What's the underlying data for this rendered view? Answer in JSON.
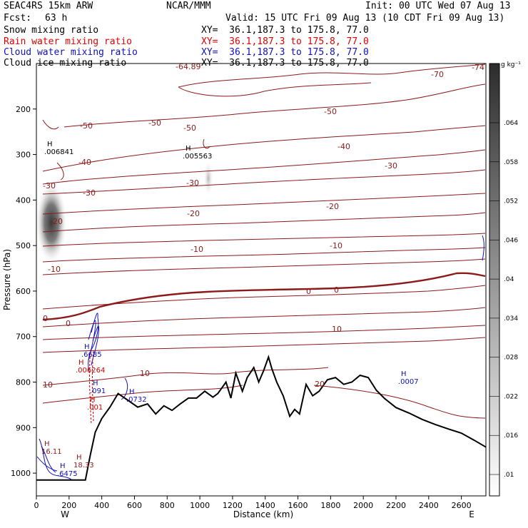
{
  "header": {
    "model": "SEAC4RS 15km ARW",
    "org": "NCAR/MMM",
    "init": "Init: 00 UTC Wed 07 Aug 13",
    "fcst_label": "Fcst:",
    "fcst_value": "63 h",
    "valid": "Valid: 15 UTC Fri 09 Aug 13 (10 CDT Fri 09 Aug 13)"
  },
  "fields": [
    {
      "name": "Snow mixing ratio",
      "xy": "XY=  36.1,187.3 to 175.8, 77.0",
      "color": "#000000"
    },
    {
      "name": "Rain water mixing ratio",
      "xy": "XY=  36.1,187.3 to 175.8, 77.0",
      "color": "#e00000"
    },
    {
      "name": "Cloud water mixing ratio",
      "xy": "XY=  36.1,187.3 to 175.8, 77.0",
      "color": "#1010c0"
    },
    {
      "name": "Cloud ice mixing ratio",
      "xy": "XY=  36.1,187.3 to 175.8, 77.0",
      "color": "#000000"
    }
  ],
  "chart_data": {
    "type": "contour",
    "xlabel": "Distance (km)",
    "ylabel": "Pressure (hPa)",
    "xlim": [
      0,
      2750
    ],
    "ylim": [
      100,
      1050
    ],
    "x_ticks": [
      0,
      200,
      400,
      600,
      800,
      1000,
      1200,
      1400,
      1600,
      1800,
      2000,
      2200,
      2400,
      2600
    ],
    "y_ticks": [
      200,
      300,
      400,
      500,
      600,
      700,
      800,
      900,
      1000
    ],
    "x_end_labels": {
      "left": "W",
      "right": "E"
    },
    "colorbar": {
      "unit": "g kg⁻¹",
      "ticks": [
        ".064",
        ".058",
        ".052",
        ".046",
        ".04",
        ".034",
        ".028",
        ".022",
        ".016",
        ".01"
      ]
    },
    "temperature_contour_labels": [
      "-74",
      "-70",
      "-64.89",
      "-50",
      "-40",
      "-30",
      "-20",
      "-10",
      "0",
      "10",
      "20"
    ],
    "maxima": [
      {
        "label": "H",
        "value": ".006841"
      },
      {
        "label": "H",
        "value": ".005563"
      },
      {
        "label": "H",
        "value": ".6685"
      },
      {
        "label": "H",
        "value": ".006264"
      },
      {
        "label": "H",
        "value": ".091"
      },
      {
        "label": "H",
        "value": ".001"
      },
      {
        "label": "H",
        "value": ".0732"
      },
      {
        "label": "H",
        "value": ".0007"
      },
      {
        "label": "H",
        "value": "16.11"
      },
      {
        "label": "H",
        "value": "18.33"
      },
      {
        "label": "H",
        "value": ".6475"
      }
    ],
    "terrain": {
      "x": [
        0,
        100,
        200,
        300,
        330,
        360,
        400,
        450,
        500,
        560,
        620,
        680,
        730,
        780,
        830,
        880,
        930,
        980,
        1030,
        1080,
        1110,
        1140,
        1160,
        1190,
        1220,
        1260,
        1290,
        1330,
        1360,
        1390,
        1420,
        1440,
        1470,
        1510,
        1550,
        1580,
        1610,
        1650,
        1690,
        1730,
        1780,
        1830,
        1880,
        1930,
        1980,
        2030,
        2080,
        2130,
        2200,
        2280,
        2360,
        2440,
        2520,
        2600,
        2680,
        2760
      ],
      "p": [
        1015,
        1015,
        1015,
        1015,
        960,
        910,
        880,
        855,
        825,
        840,
        855,
        848,
        870,
        852,
        862,
        848,
        835,
        835,
        820,
        833,
        825,
        810,
        800,
        835,
        780,
        820,
        790,
        768,
        800,
        775,
        745,
        770,
        800,
        830,
        875,
        860,
        870,
        805,
        830,
        820,
        795,
        790,
        805,
        800,
        785,
        790,
        818,
        836,
        856,
        868,
        882,
        893,
        903,
        912,
        928,
        945
      ]
    }
  }
}
